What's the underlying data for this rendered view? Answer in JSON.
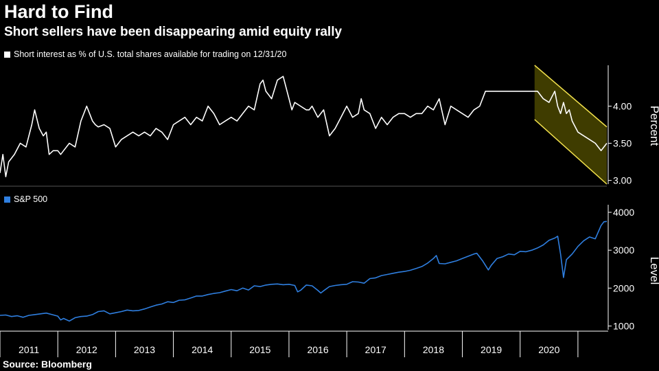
{
  "header": {
    "title": "Hard to Find",
    "subtitle": "Short sellers have been disappearing amid equity rally"
  },
  "source": "Source: Bloomberg",
  "colors": {
    "background": "#000000",
    "short_interest_line": "#ffffff",
    "sp500_line": "#2f7fe0",
    "channel_fill": "#4a4700",
    "channel_border": "#f2e14c"
  },
  "chart_data": [
    {
      "type": "line",
      "legend": "Short interest as % of U.S. total shares available for trading on 12/31/20",
      "ylabel": "Percent",
      "ylim": [
        2.95,
        4.55
      ],
      "yticks": [
        "3.00",
        "3.50",
        "4.00"
      ],
      "xlim": [
        2010.5,
        2021.0
      ],
      "grid": false,
      "series": [
        {
          "x": [
            2010.5,
            2010.55,
            2010.6,
            2010.65,
            2010.75,
            2010.85,
            2010.95,
            2011.05,
            2011.1,
            2011.18,
            2011.25,
            2011.3,
            2011.35,
            2011.42,
            2011.5,
            2011.55,
            2011.6,
            2011.7,
            2011.8,
            2011.9,
            2012.0,
            2012.05,
            2012.1,
            2012.15,
            2012.2,
            2012.3,
            2012.4,
            2012.5,
            2012.6,
            2012.7,
            2012.8,
            2012.9,
            2013.0,
            2013.1,
            2013.2,
            2013.3,
            2013.4,
            2013.5,
            2013.6,
            2013.7,
            2013.8,
            2013.9,
            2014.0,
            2014.1,
            2014.2,
            2014.3,
            2014.4,
            2014.5,
            2014.6,
            2014.7,
            2014.8,
            2014.9,
            2015.0,
            2015.05,
            2015.1,
            2015.2,
            2015.3,
            2015.4,
            2015.5,
            2015.55,
            2015.6,
            2015.7,
            2015.8,
            2015.85,
            2015.9,
            2016.0,
            2016.1,
            2016.2,
            2016.3,
            2016.4,
            2016.5,
            2016.6,
            2016.7,
            2016.75,
            2016.8,
            2016.9,
            2017.0,
            2017.1,
            2017.2,
            2017.3,
            2017.4,
            2017.5,
            2017.6,
            2017.7,
            2017.8,
            2017.9,
            2018.0,
            2018.1,
            2018.2,
            2018.3,
            2018.4,
            2018.5,
            2018.6,
            2018.7,
            2018.8,
            2018.9,
            2019.0,
            2019.1,
            2019.2,
            2019.3,
            2019.4,
            2019.5,
            2019.6,
            2019.7,
            2019.8,
            2019.9,
            2020.0,
            2020.1,
            2020.15,
            2020.2,
            2020.25,
            2020.3,
            2020.35,
            2020.4,
            2020.5,
            2020.6,
            2020.7,
            2020.8,
            2020.85,
            2020.9,
            2020.95,
            2021.0
          ],
          "y": [
            3.1,
            3.35,
            3.05,
            3.25,
            3.35,
            3.5,
            3.45,
            3.75,
            3.95,
            3.7,
            3.6,
            3.65,
            3.35,
            3.4,
            3.4,
            3.35,
            3.4,
            3.5,
            3.45,
            3.8,
            4.0,
            3.9,
            3.8,
            3.75,
            3.72,
            3.75,
            3.7,
            3.45,
            3.55,
            3.6,
            3.65,
            3.6,
            3.65,
            3.6,
            3.7,
            3.65,
            3.55,
            3.75,
            3.8,
            3.85,
            3.75,
            3.85,
            3.8,
            4.0,
            3.9,
            3.75,
            3.8,
            3.85,
            3.8,
            3.9,
            4.0,
            3.95,
            4.3,
            4.35,
            4.2,
            4.1,
            4.35,
            4.4,
            4.1,
            3.95,
            4.05,
            4.0,
            3.95,
            3.95,
            4.0,
            3.85,
            3.95,
            3.6,
            3.7,
            3.85,
            4.0,
            3.85,
            3.9,
            4.1,
            3.95,
            3.9,
            3.7,
            3.85,
            3.75,
            3.85,
            3.9,
            3.9,
            3.85,
            3.9,
            3.9,
            4.0,
            3.95,
            4.1,
            3.75,
            4.0,
            3.95,
            3.9,
            3.85,
            3.95,
            4.0,
            4.2,
            4.2,
            4.2,
            4.2,
            4.2,
            4.2,
            4.2,
            4.2,
            4.2,
            4.2,
            4.1,
            4.05,
            4.2,
            4.0,
            3.9,
            4.05,
            3.9,
            3.95,
            3.8,
            3.65,
            3.6,
            3.55,
            3.5,
            3.45,
            3.4,
            3.45,
            3.5
          ]
        }
      ],
      "annotation": {
        "type": "channel",
        "x_start": 2019.75,
        "x_end": 2021.0,
        "upper_start": 4.55,
        "upper_end": 3.72,
        "lower_start": 3.82,
        "lower_end": 2.95
      }
    },
    {
      "type": "line",
      "legend": "S&P 500",
      "ylabel": "Level",
      "ylim": [
        900,
        4200
      ],
      "yticks": [
        "1000",
        "2000",
        "3000",
        "4000"
      ],
      "xlim": [
        2010.5,
        2021.0
      ],
      "categories": [
        "2011",
        "2012",
        "2013",
        "2014",
        "2015",
        "2016",
        "2017",
        "2018",
        "2019",
        "2020"
      ],
      "grid": false,
      "series": [
        {
          "x": [
            2010.5,
            2010.6,
            2010.7,
            2010.8,
            2010.9,
            2011.0,
            2011.1,
            2011.2,
            2011.3,
            2011.4,
            2011.5,
            2011.55,
            2011.6,
            2011.7,
            2011.8,
            2011.9,
            2012.0,
            2012.1,
            2012.2,
            2012.3,
            2012.4,
            2012.5,
            2012.6,
            2012.7,
            2012.8,
            2012.9,
            2013.0,
            2013.1,
            2013.2,
            2013.3,
            2013.4,
            2013.5,
            2013.6,
            2013.7,
            2013.8,
            2013.9,
            2014.0,
            2014.1,
            2014.2,
            2014.3,
            2014.4,
            2014.5,
            2014.6,
            2014.7,
            2014.8,
            2014.9,
            2015.0,
            2015.1,
            2015.2,
            2015.3,
            2015.4,
            2015.5,
            2015.6,
            2015.65,
            2015.7,
            2015.8,
            2015.9,
            2016.0,
            2016.05,
            2016.1,
            2016.2,
            2016.3,
            2016.4,
            2016.5,
            2016.6,
            2016.7,
            2016.8,
            2016.9,
            2017.0,
            2017.1,
            2017.2,
            2017.3,
            2017.4,
            2017.5,
            2017.6,
            2017.7,
            2017.8,
            2017.9,
            2018.0,
            2018.05,
            2018.1,
            2018.2,
            2018.3,
            2018.4,
            2018.5,
            2018.6,
            2018.7,
            2018.75,
            2018.85,
            2018.95,
            2019.0,
            2019.1,
            2019.2,
            2019.3,
            2019.4,
            2019.5,
            2019.6,
            2019.7,
            2019.8,
            2019.9,
            2020.0,
            2020.1,
            2020.15,
            2020.2,
            2020.25,
            2020.3,
            2020.4,
            2020.5,
            2020.6,
            2020.7,
            2020.8,
            2020.9,
            2020.95,
            2021.0
          ],
          "y": [
            1280,
            1290,
            1250,
            1270,
            1230,
            1280,
            1300,
            1320,
            1340,
            1300,
            1260,
            1160,
            1200,
            1130,
            1220,
            1250,
            1260,
            1300,
            1380,
            1400,
            1320,
            1350,
            1380,
            1420,
            1400,
            1410,
            1450,
            1500,
            1550,
            1580,
            1640,
            1620,
            1680,
            1690,
            1740,
            1790,
            1790,
            1830,
            1860,
            1880,
            1920,
            1960,
            1930,
            2000,
            1950,
            2060,
            2040,
            2080,
            2100,
            2110,
            2090,
            2100,
            2070,
            1900,
            1940,
            2080,
            2060,
            1940,
            1870,
            1930,
            2040,
            2070,
            2090,
            2100,
            2170,
            2160,
            2130,
            2250,
            2270,
            2330,
            2360,
            2390,
            2420,
            2440,
            2470,
            2520,
            2570,
            2660,
            2780,
            2860,
            2650,
            2640,
            2680,
            2720,
            2780,
            2840,
            2900,
            2920,
            2720,
            2480,
            2600,
            2780,
            2830,
            2900,
            2880,
            2970,
            2960,
            3000,
            3060,
            3140,
            3260,
            3320,
            3370,
            2900,
            2280,
            2750,
            2900,
            3100,
            3250,
            3350,
            3300,
            3650,
            3750,
            3760
          ]
        }
      ]
    }
  ]
}
